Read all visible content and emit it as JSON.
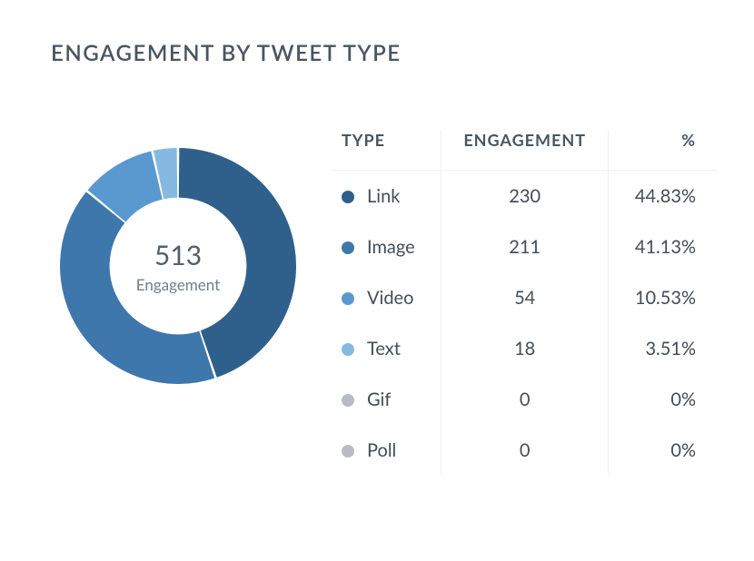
{
  "title": "ENGAGEMENT BY TWEET TYPE",
  "chart": {
    "type": "donut",
    "total_value": "513",
    "total_label": "Engagement",
    "inner_radius_ratio": 0.58,
    "gap_deg": 1.2,
    "start_angle_deg": 0,
    "background_color": "#ffffff",
    "inactive_text_color": "#b7bcc2",
    "active_text_color": "#444c55",
    "slices": [
      {
        "label": "Link",
        "value": 230,
        "pct": 44.83,
        "color": "#2f608c"
      },
      {
        "label": "Image",
        "value": 211,
        "pct": 41.13,
        "color": "#3e77ab"
      },
      {
        "label": "Video",
        "value": 54,
        "pct": 10.53,
        "color": "#5a99cf"
      },
      {
        "label": "Text",
        "value": 18,
        "pct": 3.51,
        "color": "#86b9e2"
      }
    ]
  },
  "table": {
    "headers": {
      "type": "TYPE",
      "engagement": "ENGAGEMENT",
      "pct": "%"
    },
    "empty_marker_color": "#b7bcc2",
    "rows": [
      {
        "label": "Link",
        "value": "230",
        "pct": "44.83%",
        "dot_color": "#2f608c",
        "inactive": false
      },
      {
        "label": "Image",
        "value": "211",
        "pct": "41.13%",
        "dot_color": "#3e77ab",
        "inactive": false
      },
      {
        "label": "Video",
        "value": "54",
        "pct": "10.53%",
        "dot_color": "#5a99cf",
        "inactive": false
      },
      {
        "label": "Text",
        "value": "18",
        "pct": "3.51%",
        "dot_color": "#86b9e2",
        "inactive": false
      },
      {
        "label": "Gif",
        "value": "0",
        "pct": "0%",
        "dot_color": "#b7bcc2",
        "inactive": true
      },
      {
        "label": "Poll",
        "value": "0",
        "pct": "0%",
        "dot_color": "#b7bcc2",
        "inactive": true
      }
    ]
  }
}
